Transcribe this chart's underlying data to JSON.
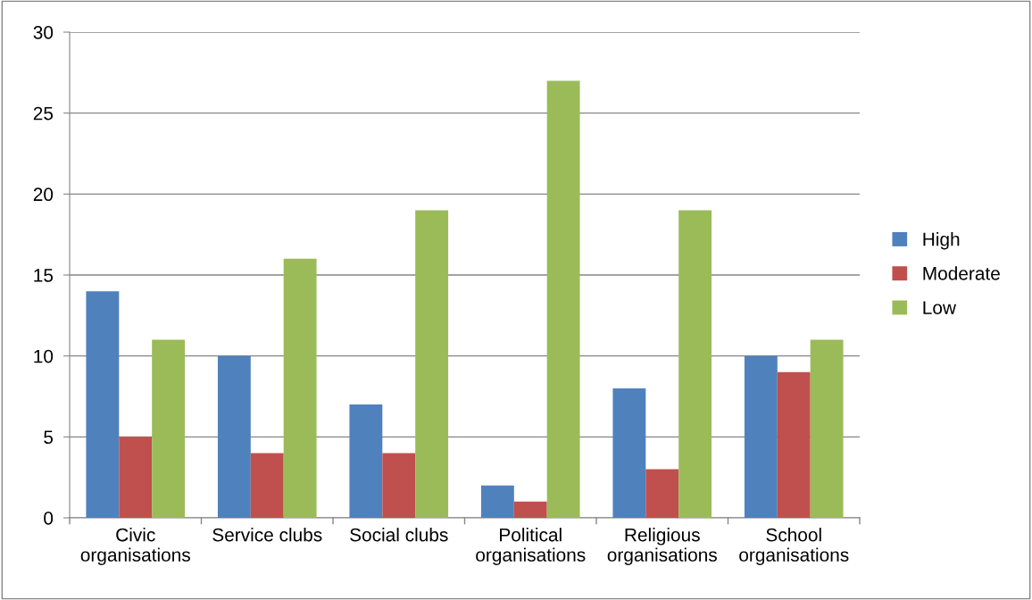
{
  "chart_data": {
    "type": "bar",
    "categories": [
      "Civic organisations",
      "Service clubs",
      "Social clubs",
      "Political organisations",
      "Religious organisations",
      "School organisations"
    ],
    "series": [
      {
        "name": "High",
        "color": "#4f81bd",
        "values": [
          14,
          10,
          7,
          2,
          8,
          10
        ]
      },
      {
        "name": "Moderate",
        "color": "#c0504d",
        "values": [
          5,
          4,
          4,
          1,
          3,
          9
        ]
      },
      {
        "name": "Low",
        "color": "#9bbb59",
        "values": [
          11,
          16,
          19,
          27,
          19,
          11
        ]
      }
    ],
    "ylim": [
      0,
      30
    ],
    "yticks": [
      0,
      5,
      10,
      15,
      20,
      25,
      30
    ],
    "grid": "y",
    "legend": "right"
  }
}
